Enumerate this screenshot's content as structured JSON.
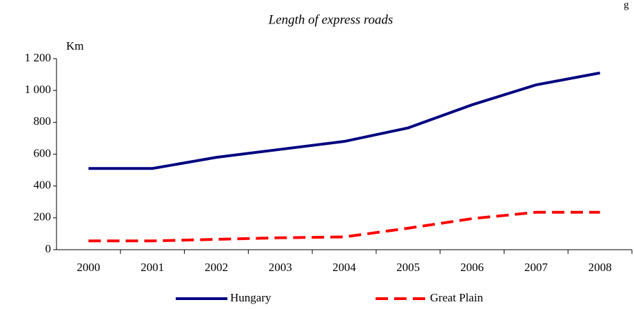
{
  "chart_data": {
    "type": "line",
    "title": "Length of express roads",
    "annotation": "g",
    "y_label": "Km",
    "categories": [
      "2000",
      "2001",
      "2002",
      "2003",
      "2004",
      "2005",
      "2006",
      "2007",
      "2008"
    ],
    "series": [
      {
        "name": "Hungary",
        "color": "#000080",
        "dashed": false,
        "values": [
          510,
          510,
          580,
          630,
          680,
          765,
          910,
          1035,
          1110
        ]
      },
      {
        "name": "Great Plain",
        "color": "#ff0000",
        "dashed": true,
        "values": [
          55,
          55,
          65,
          75,
          80,
          135,
          195,
          235,
          235
        ]
      }
    ],
    "ylim": [
      0,
      1200
    ],
    "yticks": [
      0,
      200,
      400,
      600,
      800,
      {
        "value": 1000,
        "label": "1 000"
      },
      {
        "value": 1200,
        "label": "1 200"
      }
    ],
    "legend": "bottom"
  }
}
